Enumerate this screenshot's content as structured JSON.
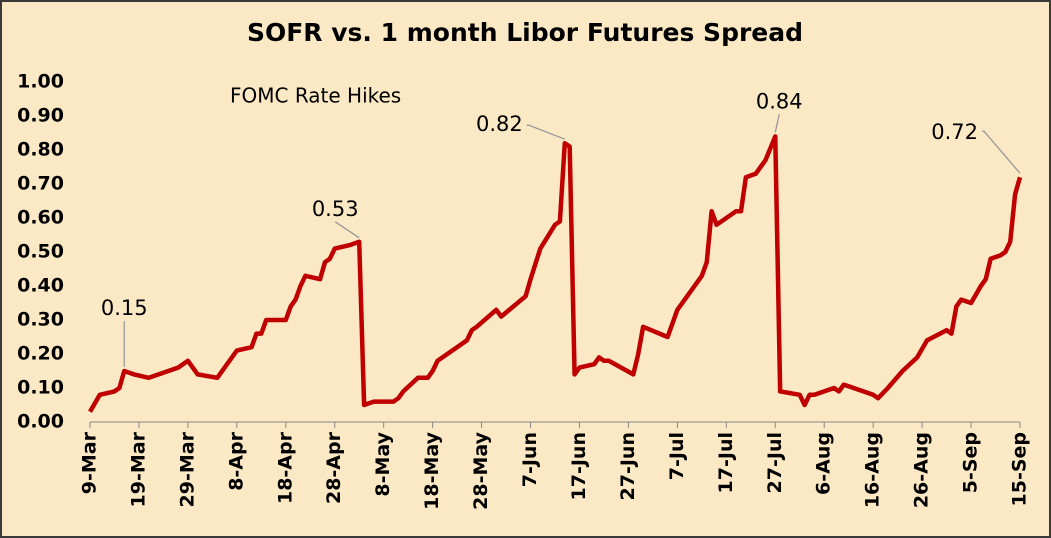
{
  "chart_data": {
    "type": "line",
    "title": "SOFR vs. 1 month Libor Futures Spread",
    "note": "FOMC Rate Hikes",
    "series": [
      {
        "color": "#c00000",
        "x": [
          0,
          2,
          5,
          6,
          7,
          9,
          12,
          14,
          18,
          20,
          22,
          26,
          30,
          33,
          34,
          35,
          36,
          40,
          41,
          42,
          43,
          44,
          47,
          48,
          49,
          50,
          53,
          55,
          56,
          58,
          62,
          63,
          64,
          67,
          69,
          70,
          71,
          77,
          78,
          79,
          83,
          84,
          89,
          90,
          92,
          95,
          96,
          97,
          98,
          99,
          100,
          103,
          104,
          105,
          106,
          111,
          112,
          113,
          118,
          120,
          125,
          126,
          127,
          128,
          132,
          133,
          134,
          136,
          138,
          140,
          141,
          145,
          146,
          147,
          148,
          152,
          153,
          154,
          158,
          160,
          161,
          163,
          166,
          169,
          171,
          175,
          176,
          177,
          178,
          180,
          182,
          183,
          184,
          186,
          187,
          188,
          189,
          190
        ],
        "values": [
          0.03,
          0.08,
          0.09,
          0.1,
          0.15,
          0.14,
          0.13,
          0.14,
          0.16,
          0.18,
          0.14,
          0.13,
          0.21,
          0.22,
          0.26,
          0.26,
          0.3,
          0.3,
          0.34,
          0.36,
          0.4,
          0.43,
          0.42,
          0.47,
          0.48,
          0.51,
          0.52,
          0.53,
          0.05,
          0.06,
          0.06,
          0.07,
          0.09,
          0.13,
          0.13,
          0.15,
          0.18,
          0.24,
          0.27,
          0.28,
          0.33,
          0.31,
          0.37,
          0.42,
          0.51,
          0.58,
          0.59,
          0.82,
          0.81,
          0.14,
          0.16,
          0.17,
          0.19,
          0.18,
          0.18,
          0.14,
          0.2,
          0.28,
          0.25,
          0.33,
          0.43,
          0.47,
          0.62,
          0.58,
          0.62,
          0.62,
          0.72,
          0.73,
          0.77,
          0.84,
          0.09,
          0.08,
          0.05,
          0.08,
          0.08,
          0.1,
          0.09,
          0.11,
          0.09,
          0.08,
          0.07,
          0.1,
          0.15,
          0.19,
          0.24,
          0.27,
          0.26,
          0.34,
          0.36,
          0.35,
          0.4,
          0.42,
          0.48,
          0.49,
          0.5,
          0.53,
          0.67,
          0.72
        ]
      }
    ],
    "annotations": [
      {
        "x": 7,
        "value": 0.15
      },
      {
        "x": 55,
        "value": 0.53
      },
      {
        "x": 97,
        "value": 0.82
      },
      {
        "x": 140,
        "value": 0.84
      },
      {
        "x": 190,
        "value": 0.72
      }
    ],
    "xlim": [
      0,
      190
    ],
    "xticks": [
      {
        "value": 0,
        "label": "9-Mar"
      },
      {
        "value": 10,
        "label": "19-Mar"
      },
      {
        "value": 20,
        "label": "29-Mar"
      },
      {
        "value": 30,
        "label": "8-Apr"
      },
      {
        "value": 40,
        "label": "18-Apr"
      },
      {
        "value": 50,
        "label": "28-Apr"
      },
      {
        "value": 60,
        "label": "8-May"
      },
      {
        "value": 70,
        "label": "18-May"
      },
      {
        "value": 80,
        "label": "28-May"
      },
      {
        "value": 90,
        "label": "7-Jun"
      },
      {
        "value": 100,
        "label": "17-Jun"
      },
      {
        "value": 110,
        "label": "27-Jun"
      },
      {
        "value": 120,
        "label": "7-Jul"
      },
      {
        "value": 130,
        "label": "17-Jul"
      },
      {
        "value": 140,
        "label": "27-Jul"
      },
      {
        "value": 150,
        "label": "6-Aug"
      },
      {
        "value": 160,
        "label": "16-Aug"
      },
      {
        "value": 170,
        "label": "26-Aug"
      },
      {
        "value": 180,
        "label": "5-Sep"
      },
      {
        "value": 190,
        "label": "15-Sep"
      }
    ],
    "ylim": [
      0,
      1
    ],
    "yticks": [
      {
        "value": 0,
        "label": "0.00"
      },
      {
        "value": 0.1,
        "label": "0.10"
      },
      {
        "value": 0.2,
        "label": "0.20"
      },
      {
        "value": 0.3,
        "label": "0.30"
      },
      {
        "value": 0.4,
        "label": "0.40"
      },
      {
        "value": 0.5,
        "label": "0.50"
      },
      {
        "value": 0.6,
        "label": "0.60"
      },
      {
        "value": 0.7,
        "label": "0.70"
      },
      {
        "value": 0.8,
        "label": "0.80"
      },
      {
        "value": 0.9,
        "label": "0.90"
      },
      {
        "value": 1,
        "label": "1.00"
      }
    ]
  }
}
